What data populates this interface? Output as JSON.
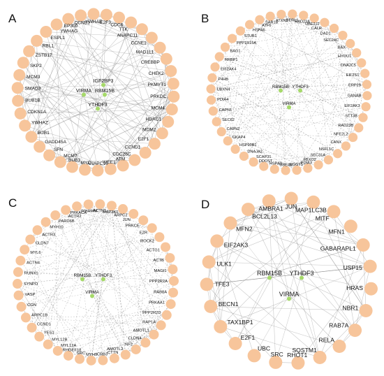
{
  "colors": {
    "outer_node": "#f7c59b",
    "hub_node": "#a6d96a",
    "edge": "#7a7a7a",
    "text": "#111111"
  },
  "panels": [
    {
      "letter": "A",
      "hubs": [
        "IGF2BP3",
        "VIRMA",
        "RBM15B",
        "YTHDF3"
      ],
      "genes": [
        "CCNE1",
        "MAD1L1",
        "CREBBP",
        "CHEK2",
        "PKMYT1",
        "PRKDC",
        "MCM4",
        "HDAC1",
        "MDM2",
        "E2F1",
        "CCND1",
        "CDC25C",
        "ATM",
        "WEE1",
        "ANAPC16",
        "MYC",
        "BUB3",
        "MCM7",
        "SFN",
        "GADD45A",
        "BUB1",
        "YWHAZ",
        "CDKN1A",
        "BUB1B",
        "SMAD3",
        "MCM3",
        "SKP2",
        "ZSTB17",
        "RBL1",
        "ESPL1",
        "YWHAG",
        "EP300",
        "CCNB1",
        "YWHAE",
        "E2F3",
        "CDC6",
        "TTK",
        "ANAPC11"
      ]
    },
    {
      "letter": "B",
      "hubs": [
        "RBM15B",
        "YTHDF3",
        "VIRMA"
      ],
      "genes": [
        "BAX",
        "HYOU1",
        "DNAJC5",
        "EIF2S1",
        "ERP29",
        "GANAB",
        "EIF2AK3",
        "STT3B",
        "RAD23B",
        "NFE2L2",
        "CANX",
        "NSFL1C",
        "SEC31A",
        "FBXO2",
        "PDIA3",
        "UGGT1",
        "UBE4B",
        "HSPA8",
        "DDOST",
        "SCAP31",
        "DNAJA2",
        "HSP90B1",
        "CKAP4",
        "CAPN2",
        "SEC62",
        "CAPN1",
        "PDIA4",
        "UBXN4",
        "P4HB",
        "EIF2AK4",
        "RRBP1",
        "BAG1",
        "PPP1R15A",
        "STUB1",
        "HSPA5",
        "ATF6",
        "SAR1B",
        "ATXN3",
        "DERL1",
        "RAD23A",
        "UBE2J2",
        "CALR",
        "DAD1",
        "SEC24C"
      ]
    },
    {
      "letter": "C",
      "hubs": [
        "RBM15B",
        "YTHDF3",
        "VIRMA"
      ],
      "genes": [
        "NF2",
        "AMOTL2",
        "CTTN",
        "CRB3",
        "MYH9",
        "SRC",
        "ARHGEF18",
        "MYL12A",
        "MYL12B",
        "YES1",
        "CCND1",
        "ARPC1B",
        "CGN",
        "VASP",
        "SYNPO",
        "RUNX1",
        "ACTN4",
        "MYL6",
        "CLDN7",
        "ACTR3",
        "MYH10",
        "PARD6B",
        "ACTR2",
        "PRKACA",
        "WHAMM",
        "ACTN1",
        "MAP3K1",
        "ARPC2",
        "JUN",
        "PRKCE",
        "EZR",
        "ROCK2",
        "ACTG1",
        "ACTB",
        "MAGI1",
        "PPP2R2A",
        "RAB8A",
        "PRKAA1",
        "PPP2R2D",
        "RAP1A",
        "AMOTL1",
        "CLDN4"
      ]
    },
    {
      "letter": "D",
      "hubs": [
        "RBM15B",
        "YTHDF3",
        "VIRMA"
      ],
      "genes": [
        "MAP1LC3B",
        "MITF",
        "MFN1",
        "GABARAPL1",
        "USP15",
        "HRAS",
        "NBR1",
        "RAB7A",
        "RELA",
        "SQSTM1",
        "RHOT1",
        "SRC",
        "UBC",
        "E2F1",
        "TAX1BP1",
        "BECN1",
        "TFE3",
        "ULK1",
        "EIF2AK3",
        "MFN2",
        "BCL2L13",
        "AMBRA1",
        "JUN"
      ]
    }
  ]
}
